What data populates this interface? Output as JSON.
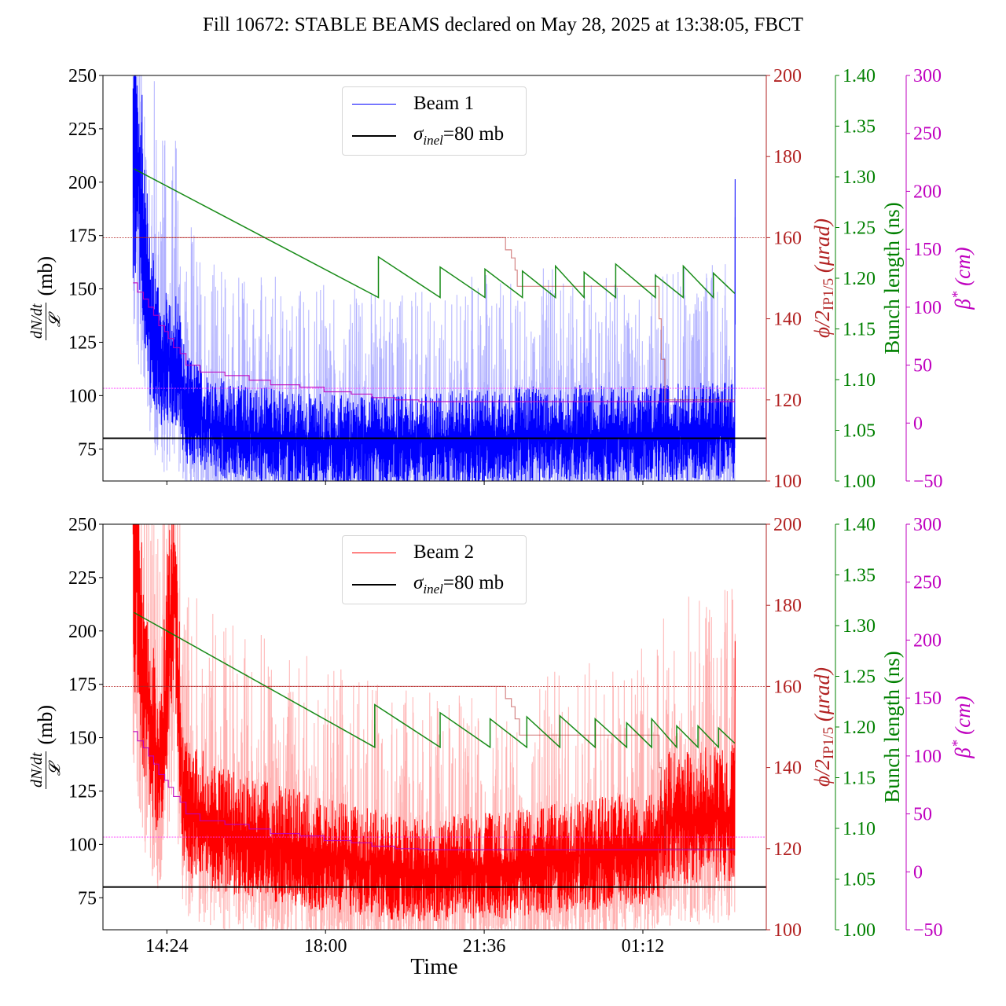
{
  "title": "Fill 10672: STABLE BEAMS declared on May 28, 2025 at 13:38:05, FBCT",
  "colors": {
    "beam1": "#0000ff",
    "beam2": "#ff0000",
    "inel": "#000000",
    "crossing": "#b22222",
    "bunch": "#008000",
    "beta": "#bf00bf"
  },
  "chart_data": [
    {
      "type": "line",
      "panel": "top",
      "legend": {
        "placement": "top-center",
        "entries": [
          "Beam 1",
          "σinel=80 mb"
        ]
      },
      "legend_text": {
        "beam": "Beam 1",
        "inel_sigma": "σ",
        "inel_sub": "inel",
        "inel_rest": "=80 mb"
      },
      "xlim": [
        "2025-05-28T12:57",
        "2025-05-29T04:00"
      ],
      "x_ticks": [
        "2025-05-28T14:24",
        "2025-05-28T18:00",
        "2025-05-28T21:36",
        "2025-05-29T01:12"
      ],
      "x_tick_labels": [],
      "left_axis": {
        "label_num": "dN/dt",
        "label_den": "𝓛",
        "label_unit": "(mb)",
        "ylim": [
          60,
          250
        ],
        "ticks": [
          "75",
          "100",
          "125",
          "150",
          "175",
          "200",
          "225",
          "250"
        ]
      },
      "crossing_axis": {
        "label_main": "ϕ/2",
        "label_sub": "IP1/5",
        "label_unit": " (μrad)",
        "ylim": [
          100,
          200
        ],
        "ticks": [
          "100",
          "120",
          "140",
          "160",
          "180",
          "200"
        ]
      },
      "bunch_axis": {
        "label": "Bunch length (ns)",
        "ylim": [
          1.0,
          1.4
        ],
        "ticks": [
          "1.00",
          "1.05",
          "1.10",
          "1.15",
          "1.20",
          "1.25",
          "1.30",
          "1.35",
          "1.40"
        ]
      },
      "beta_axis": {
        "label_main": "β",
        "label_sup": "*",
        "label_unit": " (cm)",
        "ylim": [
          -50,
          300
        ],
        "ticks": [
          "−50",
          "0",
          "50",
          "100",
          "150",
          "200",
          "250",
          "300"
        ]
      },
      "inel_reference": 80,
      "crossing_reference": 160,
      "beta_reference": 30,
      "series": [
        {
          "name": "Beam 1",
          "axis": "left",
          "kind": "noisy",
          "points": [
            [
              "2025-05-28T13:38",
              215
            ],
            [
              "2025-05-28T13:50",
              190
            ],
            [
              "2025-05-28T14:00",
              140
            ],
            [
              "2025-05-28T14:20",
              115
            ],
            [
              "2025-05-28T14:35",
              120
            ],
            [
              "2025-05-28T14:50",
              95
            ],
            [
              "2025-05-28T15:30",
              85
            ],
            [
              "2025-05-28T17:00",
              80
            ],
            [
              "2025-05-28T19:00",
              78
            ],
            [
              "2025-05-28T21:00",
              80
            ],
            [
              "2025-05-28T23:00",
              82
            ],
            [
              "2025-05-29T01:00",
              82
            ],
            [
              "2025-05-29T03:00",
              84
            ],
            [
              "2025-05-29T03:17",
              84
            ],
            [
              "2025-05-29T03:18",
              260
            ]
          ]
        },
        {
          "axis": "crossing",
          "kind": "step",
          "points": [
            [
              "2025-05-28T13:38",
              160
            ],
            [
              "2025-05-28T22:05",
              157
            ],
            [
              "2025-05-28T22:13",
              155
            ],
            [
              "2025-05-28T22:18",
              152
            ],
            [
              "2025-05-28T22:21",
              148
            ],
            [
              "2025-05-29T01:34",
              140
            ],
            [
              "2025-05-29T01:37",
              130
            ],
            [
              "2025-05-29T01:42",
              120
            ],
            [
              "2025-05-29T03:17",
              120
            ]
          ]
        },
        {
          "axis": "bunch",
          "kind": "line",
          "points": [
            [
              "2025-05-28T13:39",
              1.308
            ],
            [
              "2025-05-28T19:12",
              1.181
            ],
            [
              "2025-05-28T19:12",
              1.221
            ],
            [
              "2025-05-28T20:36",
              1.181
            ],
            [
              "2025-05-28T20:36",
              1.211
            ],
            [
              "2025-05-28T21:37",
              1.181
            ],
            [
              "2025-05-28T21:37",
              1.209
            ],
            [
              "2025-05-28T22:28",
              1.181
            ],
            [
              "2025-05-28T22:28",
              1.207
            ],
            [
              "2025-05-28T23:13",
              1.181
            ],
            [
              "2025-05-28T23:13",
              1.212
            ],
            [
              "2025-05-28T23:52",
              1.181
            ],
            [
              "2025-05-28T23:52",
              1.206
            ],
            [
              "2025-05-29T00:35",
              1.181
            ],
            [
              "2025-05-29T00:35",
              1.214
            ],
            [
              "2025-05-29T01:29",
              1.181
            ],
            [
              "2025-05-29T01:29",
              1.203
            ],
            [
              "2025-05-29T02:07",
              1.181
            ],
            [
              "2025-05-29T02:07",
              1.212
            ],
            [
              "2025-05-29T02:48",
              1.181
            ],
            [
              "2025-05-29T02:48",
              1.205
            ],
            [
              "2025-05-29T03:17",
              1.185
            ]
          ]
        },
        {
          "axis": "beta",
          "kind": "step",
          "points": [
            [
              "2025-05-28T13:38",
              121
            ],
            [
              "2025-05-28T13:44",
              113
            ],
            [
              "2025-05-28T13:52",
              107
            ],
            [
              "2025-05-28T13:59",
              100
            ],
            [
              "2025-05-28T14:06",
              93
            ],
            [
              "2025-05-28T14:13",
              84
            ],
            [
              "2025-05-28T14:21",
              79
            ],
            [
              "2025-05-28T14:26",
              73
            ],
            [
              "2025-05-28T14:33",
              65
            ],
            [
              "2025-05-28T14:42",
              60
            ],
            [
              "2025-05-28T14:50",
              50
            ],
            [
              "2025-05-28T15:09",
              44
            ],
            [
              "2025-05-28T15:43",
              41
            ],
            [
              "2025-05-28T16:16",
              37
            ],
            [
              "2025-05-28T16:45",
              33
            ],
            [
              "2025-05-28T17:25",
              31
            ],
            [
              "2025-05-28T17:58",
              27
            ],
            [
              "2025-05-28T18:35",
              25
            ],
            [
              "2025-05-28T19:03",
              22
            ],
            [
              "2025-05-28T19:35",
              20
            ],
            [
              "2025-05-28T20:07",
              18.5
            ],
            [
              "2025-05-29T03:17",
              18.5
            ]
          ]
        }
      ]
    },
    {
      "type": "line",
      "panel": "bottom",
      "legend": {
        "placement": "top-center",
        "entries": [
          "Beam 2",
          "σinel=80 mb"
        ]
      },
      "legend_text": {
        "beam": "Beam 2",
        "inel_sigma": "σ",
        "inel_sub": "inel",
        "inel_rest": "=80 mb"
      },
      "xlim": [
        "2025-05-28T12:57",
        "2025-05-29T04:00"
      ],
      "x_ticks": [
        "2025-05-28T14:24",
        "2025-05-28T18:00",
        "2025-05-28T21:36",
        "2025-05-29T01:12"
      ],
      "x_tick_labels": [
        "14:24",
        "18:00",
        "21:36",
        "01:12"
      ],
      "xlabel": "Time",
      "left_axis": {
        "label_num": "dN/dt",
        "label_den": "𝓛",
        "label_unit": "(mb)",
        "ylim": [
          60,
          250
        ],
        "ticks": [
          "75",
          "100",
          "125",
          "150",
          "175",
          "200",
          "225",
          "250"
        ]
      },
      "crossing_axis": {
        "label_main": "ϕ/2",
        "label_sub": "IP1/5",
        "label_unit": " (μrad)",
        "ylim": [
          100,
          200
        ],
        "ticks": [
          "100",
          "120",
          "140",
          "160",
          "180",
          "200"
        ]
      },
      "bunch_axis": {
        "label": "Bunch length (ns)",
        "ylim": [
          1.0,
          1.4
        ],
        "ticks": [
          "1.00",
          "1.05",
          "1.10",
          "1.15",
          "1.20",
          "1.25",
          "1.30",
          "1.35",
          "1.40"
        ]
      },
      "beta_axis": {
        "label_main": "β",
        "label_sup": "*",
        "label_unit": " (cm)",
        "ylim": [
          -50,
          300
        ],
        "ticks": [
          "−50",
          "0",
          "50",
          "100",
          "150",
          "200",
          "250",
          "300"
        ]
      },
      "inel_reference": 80,
      "crossing_reference": 160,
      "beta_reference": 30,
      "series": [
        {
          "name": "Beam 2",
          "axis": "left",
          "kind": "noisy",
          "points": [
            [
              "2025-05-28T13:38",
              250
            ],
            [
              "2025-05-28T13:55",
              170
            ],
            [
              "2025-05-28T14:15",
              135
            ],
            [
              "2025-05-28T14:28",
              200
            ],
            [
              "2025-05-28T14:35",
              230
            ],
            [
              "2025-05-28T14:45",
              120
            ],
            [
              "2025-05-28T15:30",
              108
            ],
            [
              "2025-05-28T16:30",
              102
            ],
            [
              "2025-05-28T18:00",
              95
            ],
            [
              "2025-05-28T20:00",
              88
            ],
            [
              "2025-05-28T22:00",
              90
            ],
            [
              "2025-05-29T00:00",
              95
            ],
            [
              "2025-05-29T01:30",
              100
            ],
            [
              "2025-05-29T01:45",
              112
            ],
            [
              "2025-05-29T03:17",
              115
            ],
            [
              "2025-05-29T03:18",
              260
            ]
          ]
        },
        {
          "axis": "crossing",
          "kind": "step",
          "points": [
            [
              "2025-05-28T13:38",
              160
            ],
            [
              "2025-05-28T22:05",
              157
            ],
            [
              "2025-05-28T22:13",
              155
            ],
            [
              "2025-05-28T22:18",
              152
            ],
            [
              "2025-05-28T22:24",
              148
            ],
            [
              "2025-05-29T01:34",
              140
            ],
            [
              "2025-05-29T01:37",
              130
            ],
            [
              "2025-05-29T01:42",
              120
            ],
            [
              "2025-05-29T03:17",
              120
            ]
          ]
        },
        {
          "axis": "bunch",
          "kind": "line",
          "points": [
            [
              "2025-05-28T13:39",
              1.313
            ],
            [
              "2025-05-28T19:07",
              1.18
            ],
            [
              "2025-05-28T19:07",
              1.222
            ],
            [
              "2025-05-28T20:36",
              1.18
            ],
            [
              "2025-05-28T20:36",
              1.214
            ],
            [
              "2025-05-28T21:44",
              1.18
            ],
            [
              "2025-05-28T21:44",
              1.208
            ],
            [
              "2025-05-28T22:34",
              1.18
            ],
            [
              "2025-05-28T22:34",
              1.21
            ],
            [
              "2025-05-28T23:19",
              1.18
            ],
            [
              "2025-05-28T23:19",
              1.211
            ],
            [
              "2025-05-29T00:07",
              1.18
            ],
            [
              "2025-05-29T00:07",
              1.208
            ],
            [
              "2025-05-29T00:50",
              1.18
            ],
            [
              "2025-05-29T00:50",
              1.204
            ],
            [
              "2025-05-29T01:24",
              1.18
            ],
            [
              "2025-05-29T01:24",
              1.208
            ],
            [
              "2025-05-29T01:58",
              1.18
            ],
            [
              "2025-05-29T01:58",
              1.201
            ],
            [
              "2025-05-29T02:27",
              1.18
            ],
            [
              "2025-05-29T02:27",
              1.201
            ],
            [
              "2025-05-29T02:55",
              1.18
            ],
            [
              "2025-05-29T02:55",
              1.199
            ],
            [
              "2025-05-29T03:17",
              1.184
            ]
          ]
        },
        {
          "axis": "beta",
          "kind": "step",
          "points": [
            [
              "2025-05-28T13:38",
              121
            ],
            [
              "2025-05-28T13:44",
              113
            ],
            [
              "2025-05-28T13:52",
              107
            ],
            [
              "2025-05-28T13:59",
              100
            ],
            [
              "2025-05-28T14:06",
              93
            ],
            [
              "2025-05-28T14:13",
              84
            ],
            [
              "2025-05-28T14:21",
              79
            ],
            [
              "2025-05-28T14:26",
              73
            ],
            [
              "2025-05-28T14:33",
              65
            ],
            [
              "2025-05-28T14:42",
              60
            ],
            [
              "2025-05-28T14:50",
              50
            ],
            [
              "2025-05-28T15:09",
              44
            ],
            [
              "2025-05-28T15:43",
              41
            ],
            [
              "2025-05-28T16:16",
              37
            ],
            [
              "2025-05-28T16:45",
              33
            ],
            [
              "2025-05-28T17:25",
              31
            ],
            [
              "2025-05-28T17:58",
              27
            ],
            [
              "2025-05-28T18:35",
              25
            ],
            [
              "2025-05-28T19:03",
              22
            ],
            [
              "2025-05-28T19:35",
              20
            ],
            [
              "2025-05-28T20:07",
              19
            ],
            [
              "2025-05-29T03:17",
              19
            ]
          ]
        }
      ]
    }
  ]
}
